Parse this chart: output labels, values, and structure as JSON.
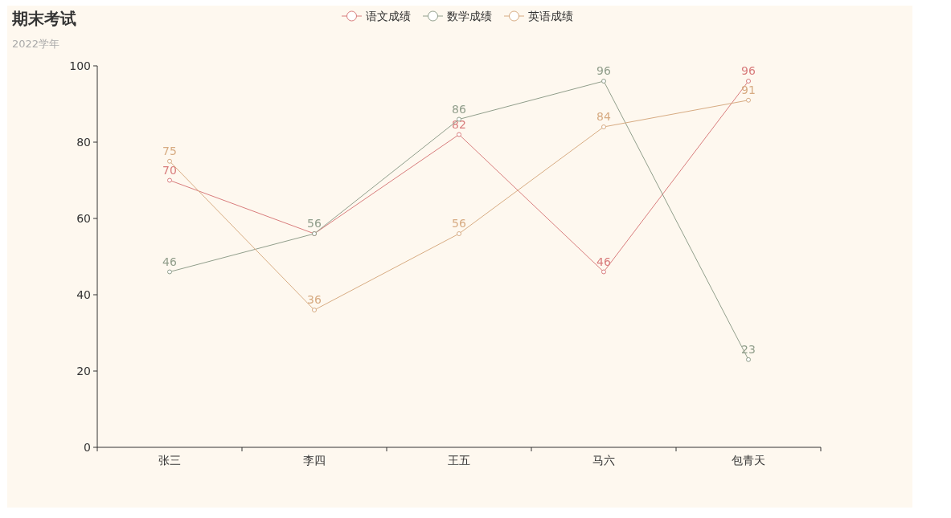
{
  "chart_data": {
    "type": "line",
    "title": "期末考试",
    "subtitle": "2022学年",
    "categories": [
      "张三",
      "李四",
      "王五",
      "马六",
      "包青天"
    ],
    "series": [
      {
        "name": "语文成绩",
        "color": "#d87c7c",
        "values": [
          70,
          56,
          82,
          46,
          96
        ],
        "value_labels": [
          "70",
          null,
          "82",
          "46",
          "96"
        ]
      },
      {
        "name": "数学成绩",
        "color": "#919e8b",
        "values": [
          46,
          56,
          86,
          96,
          23
        ]
      },
      {
        "name": "英语成绩",
        "color": "#d7ab82",
        "values": [
          75,
          36,
          56,
          84,
          91
        ]
      }
    ],
    "ylim": [
      0,
      100
    ],
    "yticks": [
      0,
      20,
      40,
      60,
      80,
      100
    ],
    "data_labels": true,
    "legend": "top",
    "marker": "circle",
    "grid": false
  }
}
